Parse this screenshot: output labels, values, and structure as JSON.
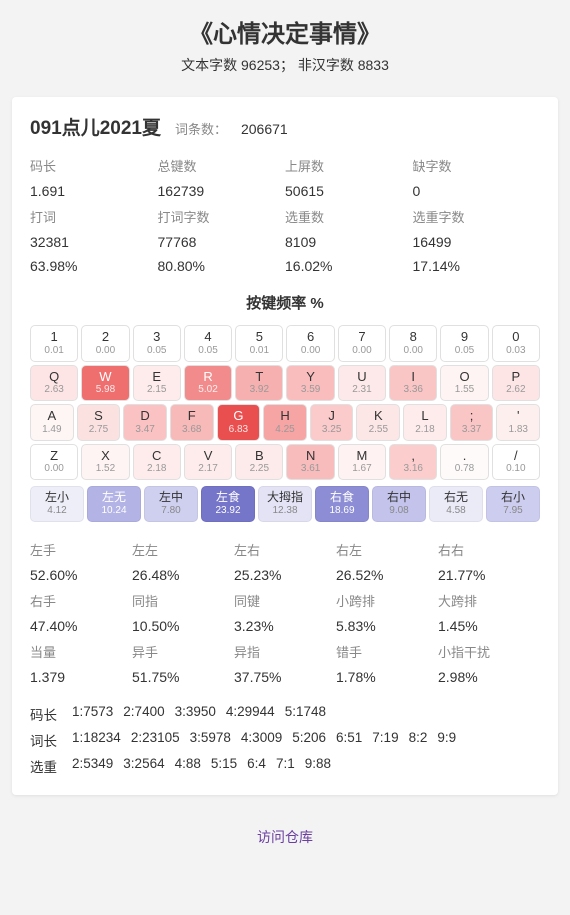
{
  "header": {
    "title": "《心情决定事情》",
    "sub": "文本字数 96253；  非汉字数 8833"
  },
  "card": {
    "name": "091点儿2021夏",
    "entries_label": "词条数：",
    "entries_value": "206671",
    "stats": {
      "r1": [
        "码长",
        "总键数",
        "上屏数",
        "缺字数"
      ],
      "r2": [
        "1.691",
        "162739",
        "50615",
        "0"
      ],
      "r3": [
        "打词",
        "打词字数",
        "选重数",
        "选重字数"
      ],
      "r4": [
        "32381",
        "77768",
        "8109",
        "16499"
      ],
      "r5": [
        "63.98%",
        "80.80%",
        "16.02%",
        "17.14%"
      ]
    },
    "freq_title": "按键频率 %",
    "kbd": {
      "row1": [
        {
          "k": "1",
          "p": "0.01",
          "bg": "#ffffff"
        },
        {
          "k": "2",
          "p": "0.00",
          "bg": "#ffffff"
        },
        {
          "k": "3",
          "p": "0.05",
          "bg": "#ffffff"
        },
        {
          "k": "4",
          "p": "0.05",
          "bg": "#ffffff"
        },
        {
          "k": "5",
          "p": "0.01",
          "bg": "#ffffff"
        },
        {
          "k": "6",
          "p": "0.00",
          "bg": "#ffffff"
        },
        {
          "k": "7",
          "p": "0.00",
          "bg": "#ffffff"
        },
        {
          "k": "8",
          "p": "0.00",
          "bg": "#ffffff"
        },
        {
          "k": "9",
          "p": "0.05",
          "bg": "#ffffff"
        },
        {
          "k": "0",
          "p": "0.03",
          "bg": "#ffffff"
        }
      ],
      "row2": [
        {
          "k": "Q",
          "p": "2.63",
          "bg": "#fde5e5"
        },
        {
          "k": "W",
          "p": "5.98",
          "bg": "#ef6f6f",
          "dark": true
        },
        {
          "k": "E",
          "p": "2.15",
          "bg": "#feecec"
        },
        {
          "k": "R",
          "p": "5.02",
          "bg": "#f28c8c",
          "dark": true
        },
        {
          "k": "T",
          "p": "3.92",
          "bg": "#f7b0b0"
        },
        {
          "k": "Y",
          "p": "3.59",
          "bg": "#f9bdbd"
        },
        {
          "k": "U",
          "p": "2.31",
          "bg": "#fde9e9"
        },
        {
          "k": "I",
          "p": "3.36",
          "bg": "#fac5c5"
        },
        {
          "k": "O",
          "p": "1.55",
          "bg": "#fef4f4"
        },
        {
          "k": "P",
          "p": "2.62",
          "bg": "#fde5e5"
        }
      ],
      "row3": [
        {
          "k": "A",
          "p": "1.49",
          "bg": "#fef5f5"
        },
        {
          "k": "S",
          "p": "2.75",
          "bg": "#fce1e1"
        },
        {
          "k": "D",
          "p": "3.47",
          "bg": "#fac2c2"
        },
        {
          "k": "F",
          "p": "3.68",
          "bg": "#f8b9b9"
        },
        {
          "k": "G",
          "p": "6.83",
          "bg": "#e94f4f",
          "dark": true
        },
        {
          "k": "H",
          "p": "4.25",
          "bg": "#f6a4a4"
        },
        {
          "k": "J",
          "p": "3.25",
          "bg": "#fbcaca"
        },
        {
          "k": "K",
          "p": "2.55",
          "bg": "#fde6e6"
        },
        {
          "k": "L",
          "p": "2.18",
          "bg": "#feecec"
        },
        {
          "k": ";",
          "p": "3.37",
          "bg": "#fac5c5"
        },
        {
          "k": "'",
          "p": "1.83",
          "bg": "#feefef"
        }
      ],
      "row4": [
        {
          "k": "Z",
          "p": "0.00",
          "bg": "#ffffff"
        },
        {
          "k": "X",
          "p": "1.52",
          "bg": "#fef4f4"
        },
        {
          "k": "C",
          "p": "2.18",
          "bg": "#feecec"
        },
        {
          "k": "V",
          "p": "2.17",
          "bg": "#feecec"
        },
        {
          "k": "B",
          "p": "2.25",
          "bg": "#fdeaea"
        },
        {
          "k": "N",
          "p": "3.61",
          "bg": "#f9bcbc"
        },
        {
          "k": "M",
          "p": "1.67",
          "bg": "#fef2f2"
        },
        {
          "k": ",",
          "p": "3.16",
          "bg": "#fbcdcd"
        },
        {
          "k": ".",
          "p": "0.78",
          "bg": "#fffafa"
        },
        {
          "k": "/",
          "p": "0.10",
          "bg": "#ffffff"
        }
      ],
      "fingers": [
        {
          "k": "左小",
          "p": "4.12",
          "bg": "#eeeef9"
        },
        {
          "k": "左无",
          "p": "10.24",
          "bg": "#b3b3e6",
          "dark": true
        },
        {
          "k": "左中",
          "p": "7.80",
          "bg": "#cfcff0"
        },
        {
          "k": "左食",
          "p": "23.92",
          "bg": "#7575c9",
          "dark": true
        },
        {
          "k": "大拇指",
          "p": "12.38",
          "bg": "#e3e3f5"
        },
        {
          "k": "右食",
          "p": "18.69",
          "bg": "#8d8dd5",
          "dark": true
        },
        {
          "k": "右中",
          "p": "9.08",
          "bg": "#c3c3ec"
        },
        {
          "k": "右无",
          "p": "4.58",
          "bg": "#ebebf8"
        },
        {
          "k": "右小",
          "p": "7.95",
          "bg": "#cdcdef"
        }
      ]
    },
    "metrics": {
      "r1": [
        "左手",
        "左左",
        "左右",
        "右左",
        "右右"
      ],
      "r2": [
        "52.60%",
        "26.48%",
        "25.23%",
        "26.52%",
        "21.77%"
      ],
      "r3": [
        "右手",
        "同指",
        "同键",
        "小跨排",
        "大跨排"
      ],
      "r4": [
        "47.40%",
        "10.50%",
        "3.23%",
        "5.83%",
        "1.45%"
      ],
      "r5": [
        "当量",
        "异手",
        "异指",
        "错手",
        "小指干扰"
      ],
      "r6": [
        "1.379",
        "51.75%",
        "37.75%",
        "1.78%",
        "2.98%"
      ]
    },
    "dist": [
      {
        "lbl": "码长",
        "items": [
          "1:7573",
          "2:7400",
          "3:3950",
          "4:29944",
          "5:1748"
        ]
      },
      {
        "lbl": "词长",
        "items": [
          "1:18234",
          "2:23105",
          "3:5978",
          "4:3009",
          "5:206",
          "6:51",
          "7:19",
          "8:2",
          "9:9"
        ]
      },
      {
        "lbl": "选重",
        "items": [
          "2:5349",
          "3:2564",
          "4:88",
          "5:15",
          "6:4",
          "7:1",
          "9:88"
        ]
      }
    ]
  },
  "footer": {
    "link": "访问仓库"
  }
}
